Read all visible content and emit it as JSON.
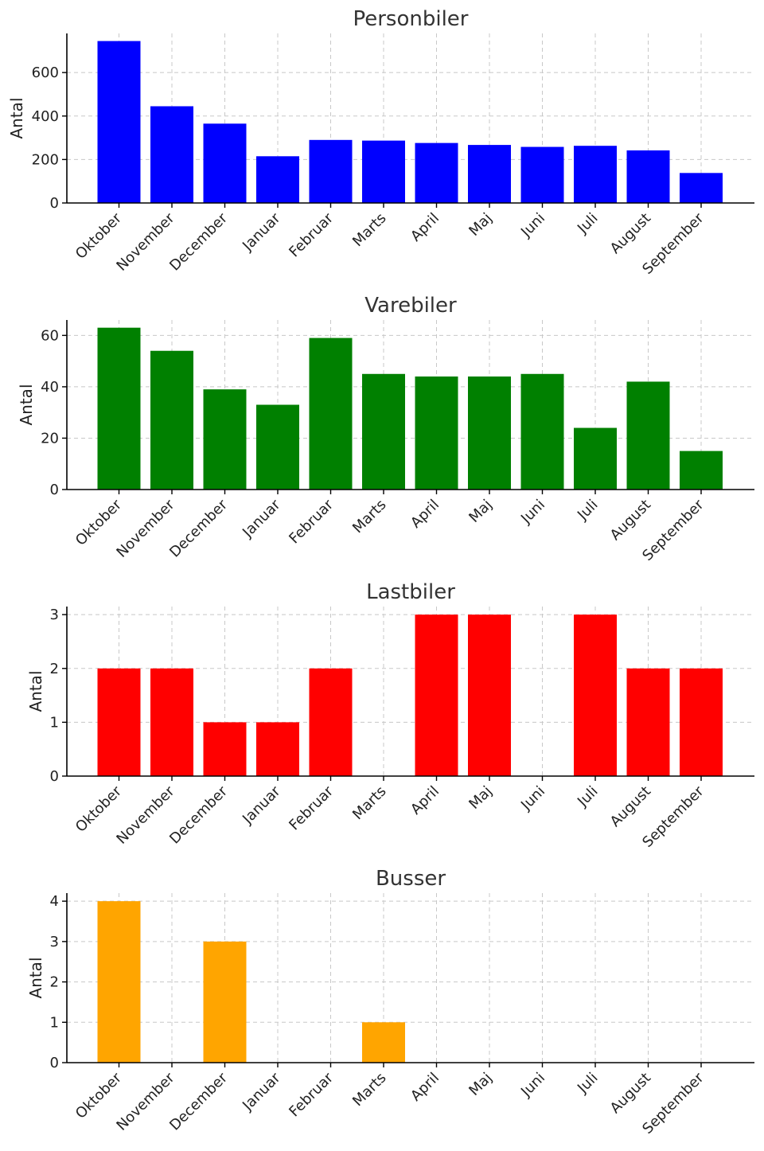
{
  "chart_data": [
    {
      "type": "bar",
      "title": "Personbiler",
      "ylabel": "Antal",
      "xlabel": "",
      "color": "#0000ff",
      "categories": [
        "Oktober",
        "November",
        "December",
        "Januar",
        "Februar",
        "Marts",
        "April",
        "Maj",
        "Juni",
        "Juli",
        "August",
        "September"
      ],
      "values": [
        745,
        445,
        365,
        215,
        290,
        287,
        276,
        267,
        258,
        263,
        242,
        138
      ],
      "ylim": [
        0,
        780
      ],
      "yticks": [
        0,
        200,
        400,
        600
      ],
      "grid": true
    },
    {
      "type": "bar",
      "title": "Varebiler",
      "ylabel": "Antal",
      "xlabel": "",
      "color": "#008000",
      "categories": [
        "Oktober",
        "November",
        "December",
        "Januar",
        "Februar",
        "Marts",
        "April",
        "Maj",
        "Juni",
        "Juli",
        "August",
        "September"
      ],
      "values": [
        63,
        54,
        39,
        33,
        59,
        45,
        44,
        44,
        45,
        24,
        42,
        15
      ],
      "ylim": [
        0,
        66
      ],
      "yticks": [
        0,
        20,
        40,
        60
      ],
      "grid": true
    },
    {
      "type": "bar",
      "title": "Lastbiler",
      "ylabel": "Antal",
      "xlabel": "",
      "color": "#ff0000",
      "categories": [
        "Oktober",
        "November",
        "December",
        "Januar",
        "Februar",
        "Marts",
        "April",
        "Maj",
        "Juni",
        "Juli",
        "August",
        "September"
      ],
      "values": [
        2,
        2,
        1,
        1,
        2,
        0,
        3,
        3,
        0,
        3,
        2,
        2
      ],
      "ylim": [
        0,
        3.15
      ],
      "yticks": [
        0,
        1,
        2,
        3
      ],
      "grid": true
    },
    {
      "type": "bar",
      "title": "Busser",
      "ylabel": "Antal",
      "xlabel": "",
      "color": "#ffa500",
      "categories": [
        "Oktober",
        "November",
        "December",
        "Januar",
        "Februar",
        "Marts",
        "April",
        "Maj",
        "Juni",
        "Juli",
        "August",
        "September"
      ],
      "values": [
        4,
        0,
        3,
        0,
        0,
        1,
        0,
        0,
        0,
        0,
        0,
        0
      ],
      "ylim": [
        0,
        4.2
      ],
      "yticks": [
        0,
        1,
        2,
        3,
        4
      ],
      "grid": true
    }
  ]
}
